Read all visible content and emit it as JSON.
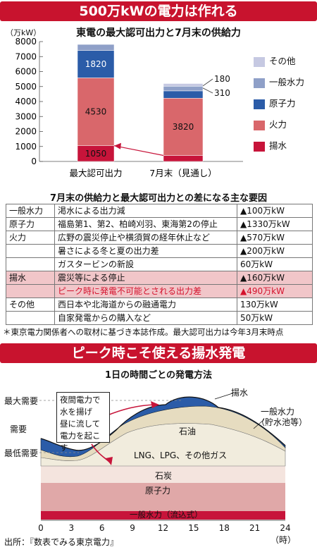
{
  "banner_top": "500万kWの電力は作れる",
  "chart1": {
    "title": "東電の最大認可出力と7月末の供給力",
    "unit": "（万kW）",
    "categories": [
      "最大認可出力",
      "7月末（見通し）"
    ],
    "ylim": [
      0,
      8000
    ],
    "yticks": [
      "0",
      "1000",
      "2000",
      "3000",
      "4000",
      "5000",
      "6000",
      "7000",
      "8000"
    ],
    "series": [
      {
        "name": "揚水",
        "values": [
          1050,
          400
        ],
        "color": "#c7143a"
      },
      {
        "name": "火力",
        "values": [
          4530,
          3820
        ],
        "color": "#d9676b"
      },
      {
        "name": "原子力",
        "values": [
          1820,
          490
        ],
        "color": "#2b5ca8"
      },
      {
        "name": "一般水力",
        "values": [
          410,
          310
        ],
        "color": "#8fa0c8"
      },
      {
        "name": "その他",
        "values": [
          0,
          180
        ],
        "color": "#c6c9e2"
      }
    ],
    "legend": [
      "その他",
      "一般水力",
      "原子力",
      "火力",
      "揚水"
    ]
  },
  "chart_data": [
    {
      "type": "bar",
      "title": "東電の最大認可出力と7月末の供給力",
      "ylabel": "（万kW）",
      "categories": [
        "最大認可出力",
        "7月末（見通し）"
      ],
      "series": [
        {
          "name": "揚水",
          "values": [
            1050,
            400
          ]
        },
        {
          "name": "火力",
          "values": [
            4530,
            3820
          ]
        },
        {
          "name": "原子力",
          "values": [
            1820,
            490
          ]
        },
        {
          "name": "一般水力",
          "values": [
            410,
            310
          ]
        },
        {
          "name": "その他",
          "values": [
            0,
            180
          ]
        }
      ],
      "ylim": [
        0,
        8000
      ],
      "grid": false,
      "legend": "right"
    },
    {
      "type": "area",
      "title": "1日の時間ごとの発電方法",
      "xlabel": "（時）",
      "x_ticks": [
        "0",
        "3",
        "6",
        "9",
        "12",
        "15",
        "18",
        "21",
        "24"
      ],
      "layers": [
        "一般水力（流込式）",
        "原子力",
        "石炭",
        "LNG、LPG、その他ガス",
        "石油",
        "揚水",
        "一般水力（貯水池等）"
      ],
      "y_labels": [
        "最大需要",
        "需要",
        "最低需要"
      ]
    }
  ],
  "table": {
    "title": "7月末の供給力と最大認可出力との差になる主な要因",
    "rows": [
      {
        "cat": "一般水力",
        "desc": "渇水による出力減",
        "amt": "▲100万kW",
        "style": ""
      },
      {
        "cat": "原子力",
        "desc": "福島第1、第2、柏崎刈羽、東海第2の停止",
        "amt": "▲1330万kW",
        "style": ""
      },
      {
        "cat": "火力",
        "desc": "広野の震災停止や横須賀の経年休止など",
        "amt": "▲570万kW",
        "style": ""
      },
      {
        "cat": "",
        "desc": "暑さによる冬と夏の出力差",
        "amt": "▲200万kW",
        "style": ""
      },
      {
        "cat": "",
        "desc": "ガスタービンの新設",
        "amt": "60万kW",
        "style": ""
      },
      {
        "cat": "揚水",
        "desc": "震災等による停止",
        "amt": "▲160万kW",
        "style": "pink"
      },
      {
        "cat": "",
        "desc": "ピーク時に発電不可能とされる出力差",
        "amt": "▲490万kW",
        "style": "pink red"
      },
      {
        "cat": "その他",
        "desc": "西日本や北海道からの融通電力",
        "amt": "130万kW",
        "style": ""
      },
      {
        "cat": "",
        "desc": "自家発電からの購入など",
        "amt": "50万kW",
        "style": ""
      }
    ],
    "footnote": "＊東京電力関係者への取材に基づき本誌作成。最大認可出力は今年3月末時点"
  },
  "banner_bottom": "ピーク時こそ使える揚水発電",
  "chart2": {
    "title": "1日の時間ごとの発電方法",
    "y_labels": {
      "max": "最大需要",
      "demand": "需要",
      "min": "最低需要"
    },
    "x_ticks": [
      "0",
      "3",
      "6",
      "9",
      "12",
      "15",
      "18",
      "21",
      "24"
    ],
    "x_unit": "（時）",
    "labels": {
      "pumped": "揚水",
      "hydro_res_1": "一般水力",
      "hydro_res_2": "（貯水池等）",
      "oil": "石油",
      "lng": "LNG、LPG、その他ガス",
      "coal": "石炭",
      "nuclear": "原子力",
      "hydro_run": "一般水力（流込式）"
    },
    "callout": [
      "夜間電力で",
      "水を揚げ",
      "昼に流して",
      "電力を起こす"
    ],
    "colors": {
      "pumped": "#2b5ca8",
      "oil": "#e6dcc0",
      "lng": "#f1ecdd",
      "coal": "#f4e4de",
      "nuclear": "#e0a8a8",
      "hydro_run": "#c7143a"
    }
  },
  "source": "出所：『数表でみる東京電力』"
}
